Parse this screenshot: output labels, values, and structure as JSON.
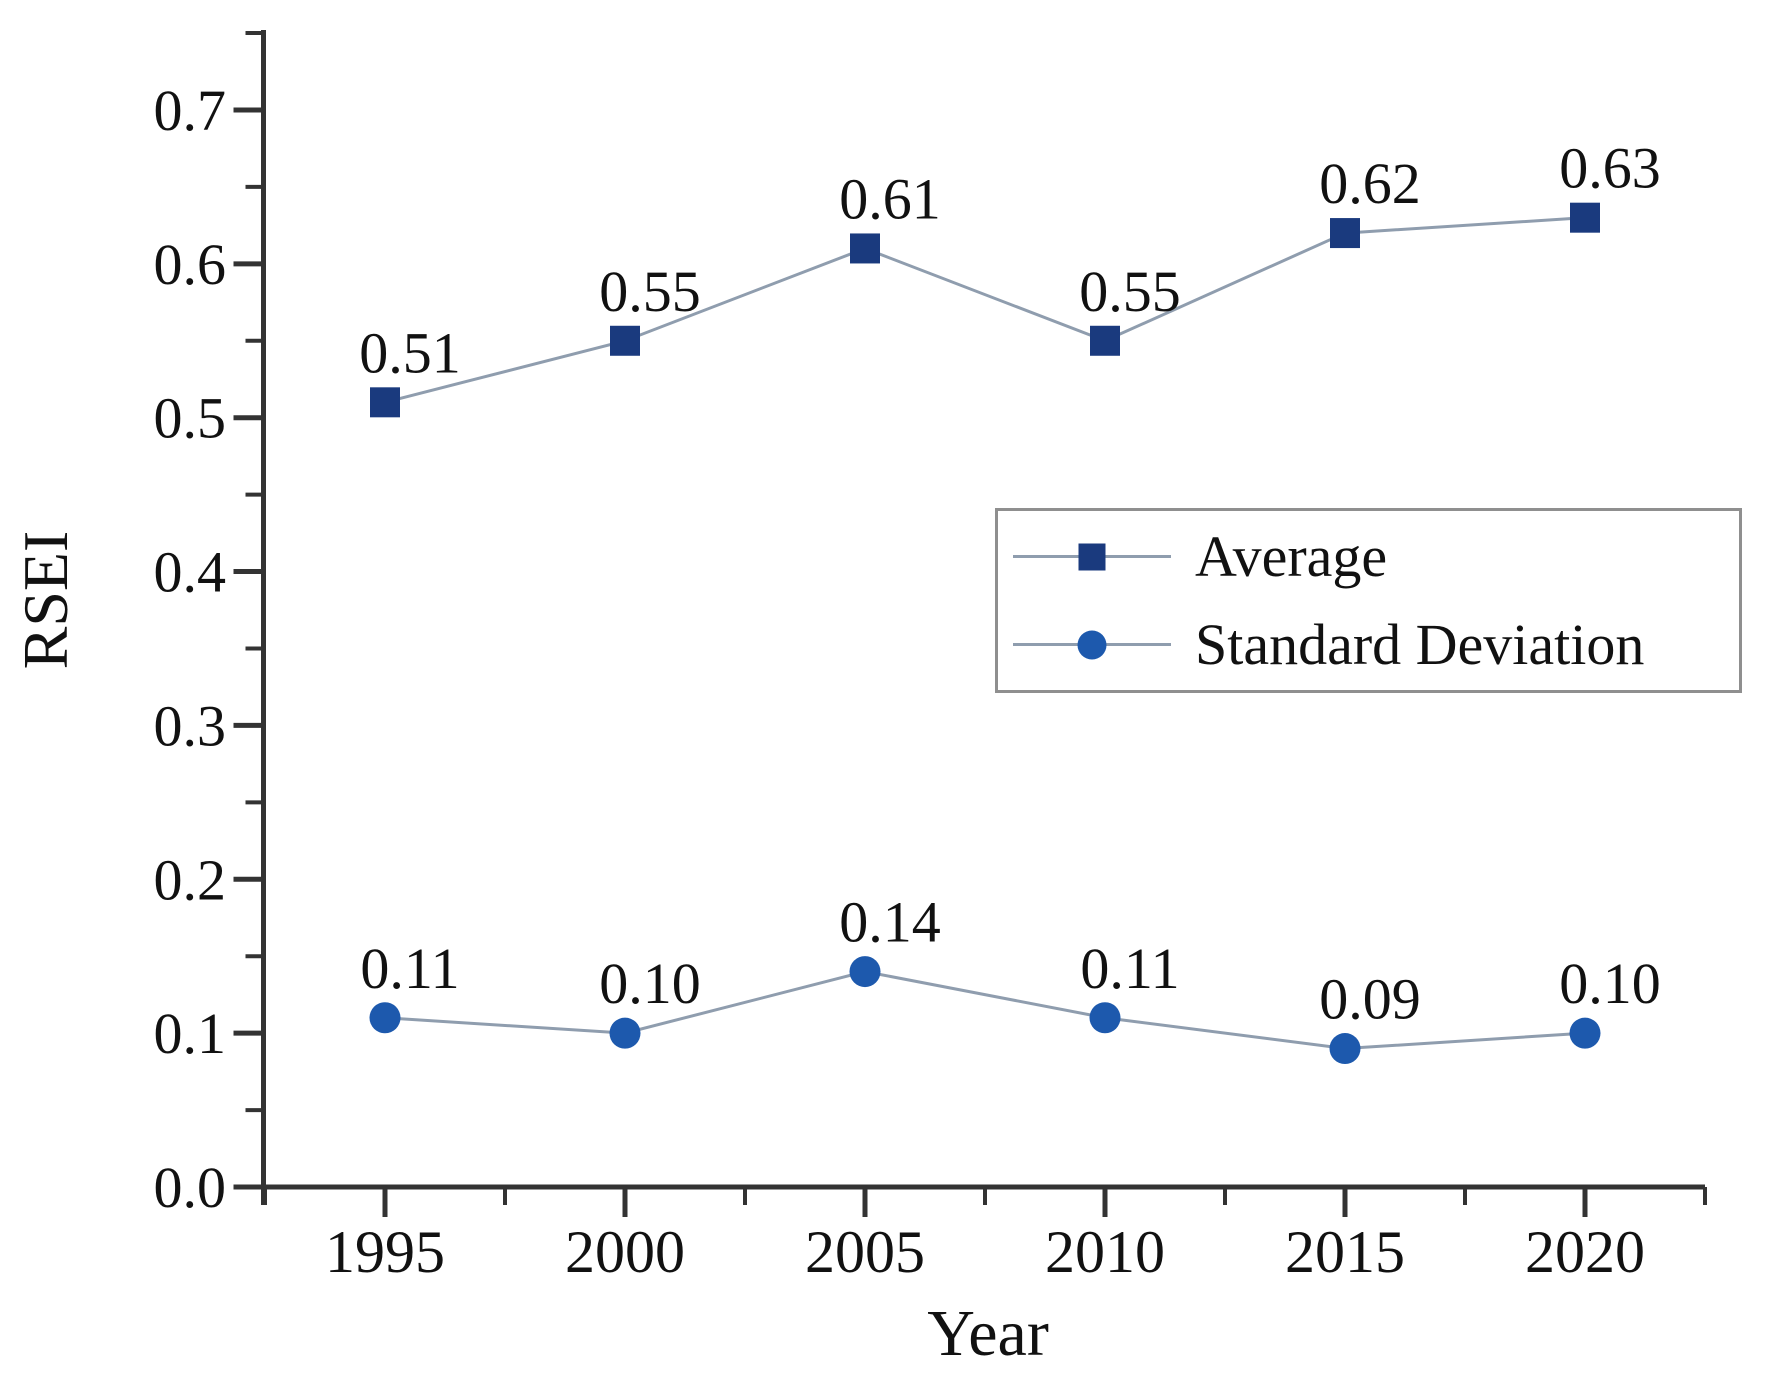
{
  "chart_data": {
    "type": "line",
    "title": "",
    "xlabel": "Year",
    "ylabel": "RSEI",
    "x": [
      1995,
      2000,
      2005,
      2010,
      2015,
      2020
    ],
    "xtick_labels": [
      "1995",
      "2000",
      "2005",
      "2010",
      "2015",
      "2020"
    ],
    "yticks": [
      0.0,
      0.1,
      0.2,
      0.3,
      0.4,
      0.5,
      0.6,
      0.7
    ],
    "ytick_labels": [
      "0.0",
      "0.1",
      "0.2",
      "0.3",
      "0.4",
      "0.5",
      "0.6",
      "0.7"
    ],
    "ylim": [
      0.0,
      0.75
    ],
    "grid": false,
    "legend_position": "center-right",
    "series": [
      {
        "name": "Average",
        "marker": "square",
        "marker_color": "#1a3a7e",
        "values": [
          0.51,
          0.55,
          0.61,
          0.55,
          0.62,
          0.63
        ],
        "point_labels": [
          "0.51",
          "0.55",
          "0.61",
          "0.55",
          "0.62",
          "0.63"
        ]
      },
      {
        "name": "Standard Deviation",
        "marker": "circle",
        "marker_color": "#1d59ad",
        "values": [
          0.11,
          0.1,
          0.14,
          0.11,
          0.09,
          0.1
        ],
        "point_labels": [
          "0.11",
          "0.10",
          "0.14",
          "0.11",
          "0.09",
          "0.10"
        ]
      }
    ],
    "line_color": "#8f9dae",
    "axis_color": "#333333",
    "text_color": "#111111"
  }
}
